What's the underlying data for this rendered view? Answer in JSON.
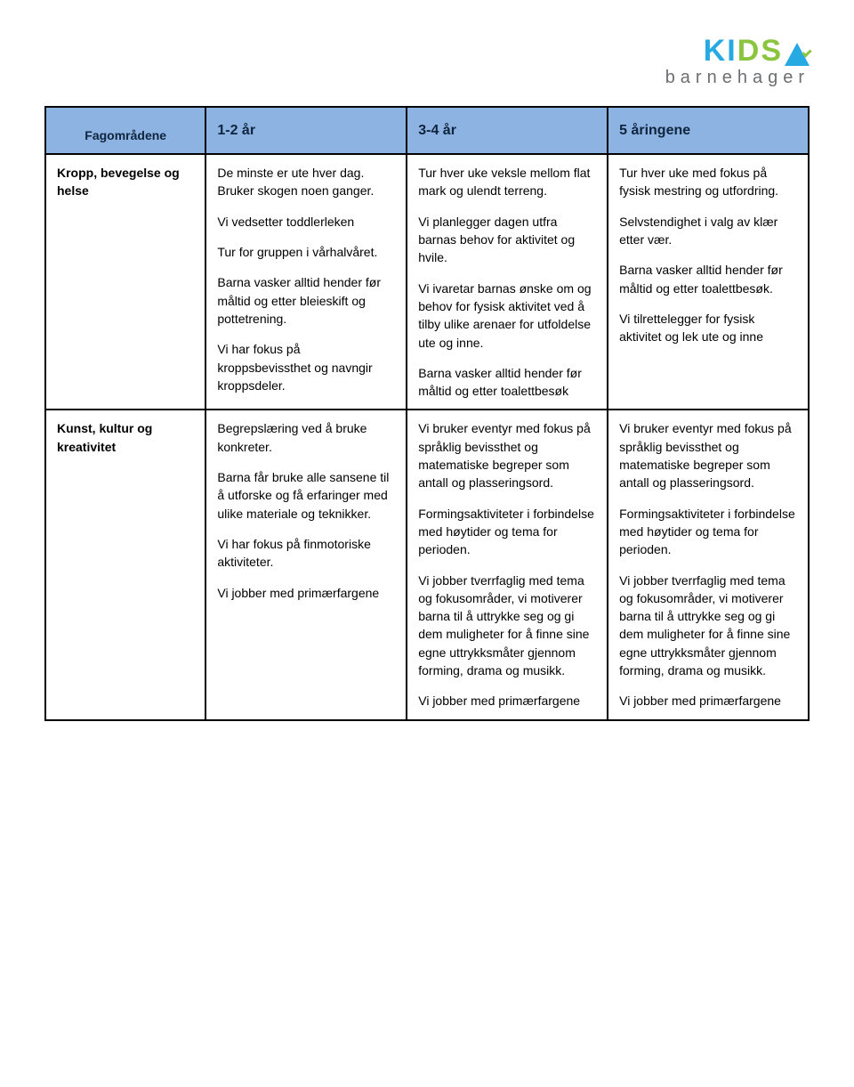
{
  "logo": {
    "main": "KIDSA",
    "sub": "barnehager",
    "colors": {
      "blue": "#27a9e1",
      "green": "#8bc53f",
      "grey": "#6d6e71"
    }
  },
  "table": {
    "header_bg": "#8db3e2",
    "header_fg": "#0f243e",
    "border": "#000000",
    "section_label": "Fagområdene",
    "columns": [
      "1-2 år",
      "3-4 år",
      "5 åringene"
    ],
    "rows": [
      {
        "label": "Kropp, bevegelse og helse",
        "cells": [
          [
            "De minste er ute hver dag. Bruker skogen noen ganger.",
            "Vi vedsetter toddlerleken",
            "Tur for gruppen i vårhalvåret.",
            "Barna vasker alltid hender før måltid og etter bleieskift og pottetrening.",
            "Vi har fokus på kroppsbevissthet og navngir kroppsdeler."
          ],
          [
            "Tur hver uke veksle mellom flat mark og ulendt terreng.",
            "Vi planlegger dagen utfra barnas behov for aktivitet og hvile.",
            "Vi ivaretar barnas ønske om og behov for fysisk aktivitet ved å tilby ulike arenaer for utfoldelse ute og inne.",
            "Barna vasker alltid hender før måltid og etter toalettbesøk"
          ],
          [
            "Tur hver uke med fokus på fysisk mestring og utfordring.",
            "Selvstendighet i valg av klær etter vær.",
            "Barna vasker alltid hender før måltid og etter toalettbesøk.",
            "Vi tilrettelegger for fysisk aktivitet og lek ute og inne"
          ]
        ]
      },
      {
        "label": "Kunst, kultur og kreativitet",
        "cells": [
          [
            "Begrepslæring ved å bruke konkreter.",
            "Barna får bruke alle sansene til å utforske og få erfaringer med ulike materiale og teknikker.",
            "Vi har fokus på finmotoriske aktiviteter.",
            "Vi jobber med primærfargene"
          ],
          [
            "Vi bruker eventyr med fokus på språklig bevissthet og matematiske begreper som antall og plasseringsord.",
            "Formingsaktiviteter i forbindelse med høytider og tema for perioden.",
            "Vi jobber tverrfaglig med tema og fokusområder, vi motiverer barna til å uttrykke seg og gi dem muligheter for å finne sine egne uttrykksmåter gjennom forming, drama og musikk.",
            "Vi jobber med primærfargene"
          ],
          [
            "Vi bruker eventyr med fokus på språklig bevissthet og matematiske begreper som antall og plasseringsord.",
            "Formingsaktiviteter i forbindelse med høytider og tema for perioden.",
            "Vi jobber tverrfaglig med tema og fokusområder, vi motiverer barna til å uttrykke seg og gi dem muligheter for å finne sine egne uttrykksmåter gjennom forming, drama og musikk.",
            "Vi jobber med primærfargene"
          ]
        ]
      }
    ]
  }
}
